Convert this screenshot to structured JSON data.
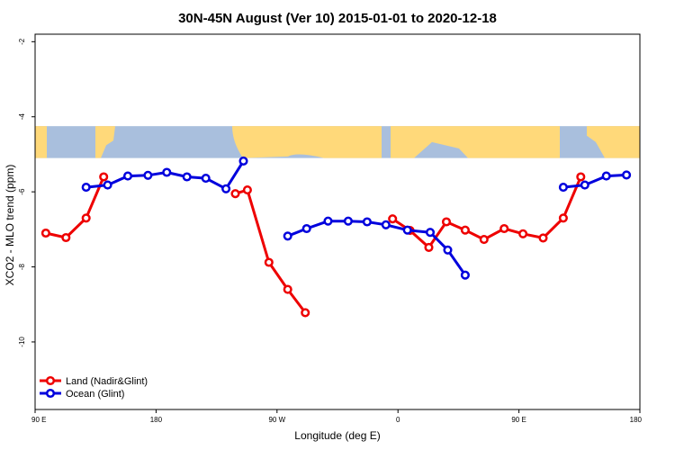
{
  "chart_data": {
    "type": "line",
    "title": "30N-45N August (Ver 10)   2015-01-01 to 2020-12-18",
    "xlabel": "Longitude (deg E)",
    "ylabel": "XCO2 - MLO trend (ppm)",
    "x_ticks": [
      {
        "value": 90,
        "label": "90 E"
      },
      {
        "value": 180,
        "label": "180"
      },
      {
        "value": 270,
        "label": "90 W"
      },
      {
        "value": 360,
        "label": "0"
      },
      {
        "value": 450,
        "label": "90 E"
      },
      {
        "value": 540,
        "label": "180"
      }
    ],
    "y_ticks": [
      {
        "value": -2,
        "label": "-2"
      },
      {
        "value": -4,
        "label": "-4"
      },
      {
        "value": -6,
        "label": "-6"
      },
      {
        "value": -8,
        "label": "-8"
      },
      {
        "value": -10,
        "label": "-10"
      }
    ],
    "xlim": [
      90,
      540
    ],
    "ylim": [
      -11.8,
      -1.8
    ],
    "background_map": {
      "y_range": [
        -4.25,
        -5.1
      ],
      "ocean_color": "#a9bfdd",
      "land_color": "#ffd97a"
    },
    "legend_position": "bottom-left",
    "series": [
      {
        "name": "Land (Nadir&Glint)",
        "color": "#ee0000",
        "segments": [
          [
            [
              98,
              -7.1
            ],
            [
              113,
              -7.22
            ],
            [
              128,
              -6.7
            ],
            [
              141,
              -5.6
            ]
          ],
          [
            [
              239,
              -6.05
            ],
            [
              248,
              -5.95
            ],
            [
              264,
              -7.88
            ],
            [
              278,
              -8.6
            ],
            [
              291,
              -9.22
            ]
          ],
          [
            [
              356,
              -6.72
            ],
            [
              369,
              -7.03
            ],
            [
              383,
              -7.48
            ],
            [
              396,
              -6.8
            ],
            [
              410,
              -7.02
            ],
            [
              424,
              -7.27
            ],
            [
              439,
              -6.98
            ],
            [
              453,
              -7.12
            ],
            [
              468,
              -7.23
            ],
            [
              483,
              -6.7
            ],
            [
              496,
              -5.6
            ]
          ]
        ]
      },
      {
        "name": "Ocean (Glint)",
        "color": "#0000dd",
        "segments": [
          [
            [
              128,
              -5.88
            ],
            [
              144,
              -5.82
            ],
            [
              159,
              -5.58
            ],
            [
              174,
              -5.56
            ],
            [
              188,
              -5.48
            ],
            [
              203,
              -5.6
            ],
            [
              217,
              -5.64
            ],
            [
              232,
              -5.92
            ],
            [
              245,
              -5.18
            ]
          ],
          [
            [
              278,
              -7.18
            ],
            [
              292,
              -6.98
            ],
            [
              308,
              -6.78
            ],
            [
              323,
              -6.78
            ],
            [
              337,
              -6.8
            ],
            [
              351,
              -6.88
            ],
            [
              367,
              -7.02
            ],
            [
              384,
              -7.08
            ],
            [
              397,
              -7.55
            ],
            [
              410,
              -8.22
            ]
          ],
          [
            [
              483,
              -5.88
            ],
            [
              499,
              -5.82
            ],
            [
              515,
              -5.58
            ],
            [
              530,
              -5.55
            ]
          ]
        ]
      }
    ]
  }
}
